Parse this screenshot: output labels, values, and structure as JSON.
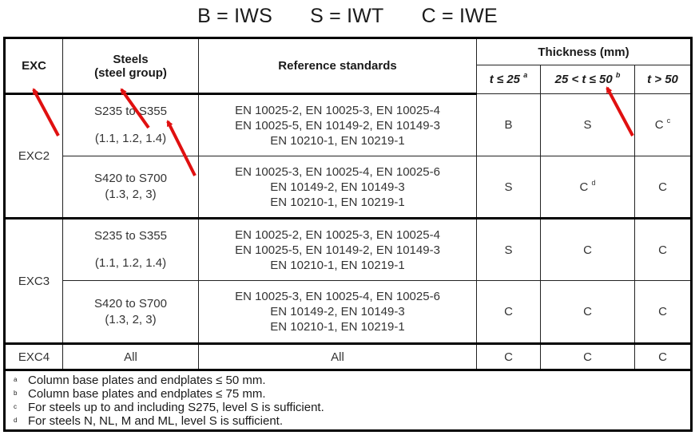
{
  "title": {
    "b": "B = IWS",
    "s": "S = IWT",
    "c": "C = IWE"
  },
  "header": {
    "exc": "EXC",
    "steels_line1": "Steels",
    "steels_line2": "(steel group)",
    "reference": "Reference standards",
    "thickness": "Thickness (mm)",
    "t1": "t ≤ 25",
    "t1_sup": "a",
    "t2": "25 < t ≤ 50",
    "t2_sup": "b",
    "t3": "t > 50"
  },
  "rows": [
    {
      "exc": "EXC2",
      "steel": "S235 to S355",
      "group": "(1.1, 1.2, 1.4)",
      "ref1": "EN 10025-2, EN 10025-3, EN 10025-4",
      "ref2": "EN 10025-5, EN 10149-2, EN 10149-3",
      "ref3": "EN 10210-1, EN 10219-1",
      "c1": "B",
      "c2": "S",
      "c3": "C",
      "c3_sup": "c"
    },
    {
      "steel": "S420 to S700",
      "group": "(1.3, 2, 3)",
      "ref1": "EN 10025-3, EN 10025-4, EN 10025-6",
      "ref2": "EN 10149-2, EN 10149-3",
      "ref3": "EN 10210-1, EN 10219-1",
      "c1": "S",
      "c2": "C",
      "c2_sup": "d",
      "c3": "C"
    },
    {
      "exc": "EXC3",
      "steel": "S235 to S355",
      "group": "(1.1, 1.2, 1.4)",
      "ref1": "EN 10025-2, EN 10025-3, EN 10025-4",
      "ref2": "EN 10025-5, EN 10149-2, EN 10149-3",
      "ref3": "EN 10210-1, EN 10219-1",
      "c1": "S",
      "c2": "C",
      "c3": "C"
    },
    {
      "steel": "S420 to S700",
      "group": "(1.3, 2, 3)",
      "ref1": "EN 10025-3, EN 10025-4, EN 10025-6",
      "ref2": "EN 10149-2, EN 10149-3",
      "ref3": "EN 10210-1, EN 10219-1",
      "c1": "C",
      "c2": "C",
      "c3": "C"
    },
    {
      "exc": "EXC4",
      "steel": "All",
      "ref": "All",
      "c1": "C",
      "c2": "C",
      "c3": "C"
    }
  ],
  "footnotes": [
    {
      "mark": "a",
      "text": "Column base plates and endplates ≤ 50 mm."
    },
    {
      "mark": "b",
      "text": "Column base plates and endplates ≤ 75 mm."
    },
    {
      "mark": "c",
      "text": "For steels up to and including S275, level S is sufficient."
    },
    {
      "mark": "d",
      "text": "For steels N, NL, M and ML, level S is sufficient."
    }
  ],
  "annotation_color": "#e01010"
}
